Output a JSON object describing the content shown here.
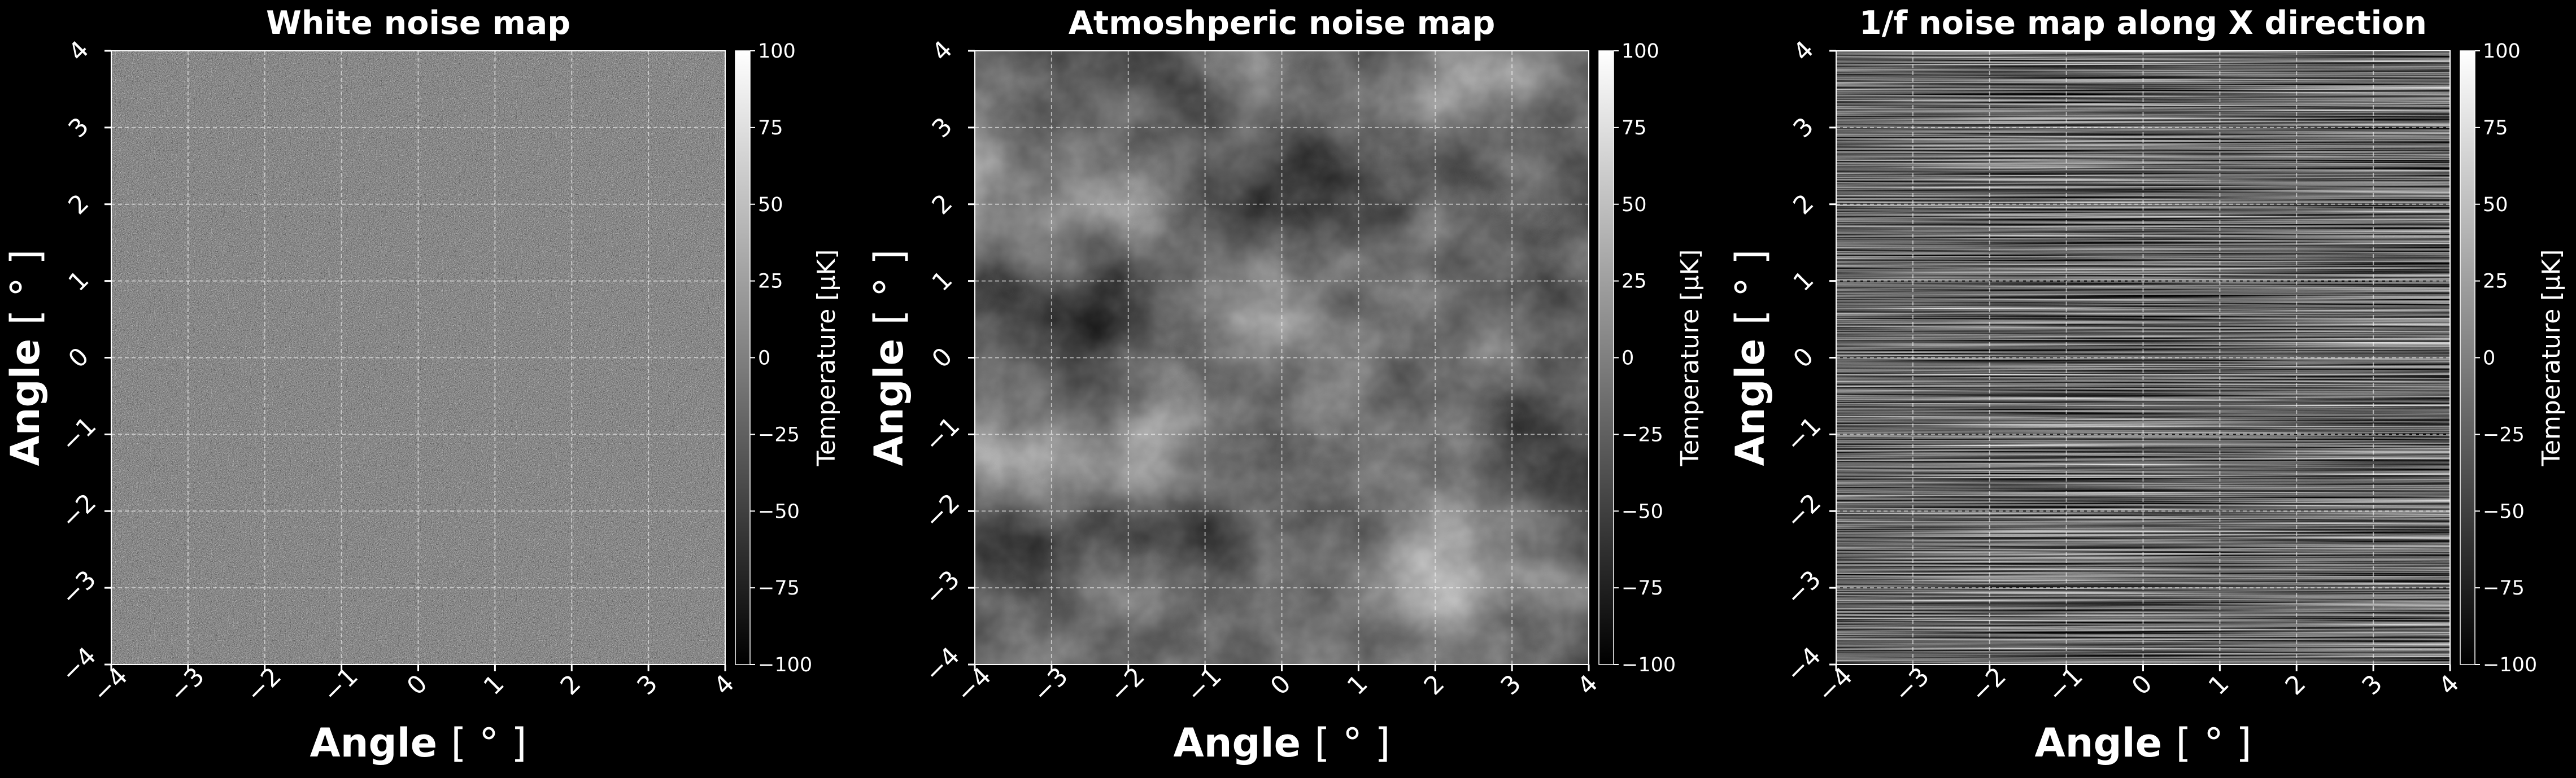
{
  "chart_data": [
    {
      "type": "heatmap",
      "title": "White noise map",
      "xlabel": "Angle [$^\\circ$]",
      "ylabel": "Angle [$^\\circ$]",
      "xlim": [
        -4,
        4
      ],
      "ylim": [
        -4,
        4
      ],
      "xticks": [
        -4,
        -3,
        -2,
        -1,
        0,
        1,
        2,
        3,
        4
      ],
      "yticks": [
        -4,
        -3,
        -2,
        -1,
        0,
        1,
        2,
        3,
        4
      ],
      "grid": true,
      "colormap": "gray",
      "colorbar": {
        "label": "Temperature [$\\mu$K]",
        "range": [
          -100,
          100
        ],
        "ticks": [
          100,
          75,
          50,
          25,
          0,
          -25,
          -50,
          -75,
          -100
        ]
      },
      "noise": "white"
    },
    {
      "type": "heatmap",
      "title": "Atmoshperic noise map",
      "xlabel": "Angle [$^\\circ$]",
      "ylabel": "Angle [$^\\circ$]",
      "xlim": [
        -4,
        4
      ],
      "ylim": [
        -4,
        4
      ],
      "xticks": [
        -4,
        -3,
        -2,
        -1,
        0,
        1,
        2,
        3,
        4
      ],
      "yticks": [
        -4,
        -3,
        -2,
        -1,
        0,
        1,
        2,
        3,
        4
      ],
      "grid": true,
      "colormap": "gray",
      "colorbar": {
        "label": "Temperature [$\\mu$K]",
        "range": [
          -100,
          100
        ],
        "ticks": [
          100,
          75,
          50,
          25,
          0,
          -25,
          -50,
          -75,
          -100
        ]
      },
      "noise": "atmospheric"
    },
    {
      "type": "heatmap",
      "title": "1/f noise map along X direction",
      "xlabel": "Angle [$^\\circ$]",
      "ylabel": "Angle [$^\\circ$]",
      "xlim": [
        -4,
        4
      ],
      "ylim": [
        -4,
        4
      ],
      "xticks": [
        -4,
        -3,
        -2,
        -1,
        0,
        1,
        2,
        3,
        4
      ],
      "yticks": [
        -4,
        -3,
        -2,
        -1,
        0,
        1,
        2,
        3,
        4
      ],
      "grid": true,
      "colormap": "gray",
      "colorbar": {
        "label": "Temperature [$\\mu$K]",
        "range": [
          -100,
          100
        ],
        "ticks": [
          100,
          75,
          50,
          25,
          0,
          -25,
          -50,
          -75,
          -100
        ]
      },
      "noise": "one_over_f_x"
    }
  ],
  "display": {
    "axis_label_text": "Angle",
    "axis_label_unit": "[ ° ]",
    "colorbar_label": "Temperature [μK]",
    "minus_sign": "−",
    "colors": {
      "background": "#000000",
      "foreground": "#ffffff",
      "grid": "#ffffff"
    }
  }
}
